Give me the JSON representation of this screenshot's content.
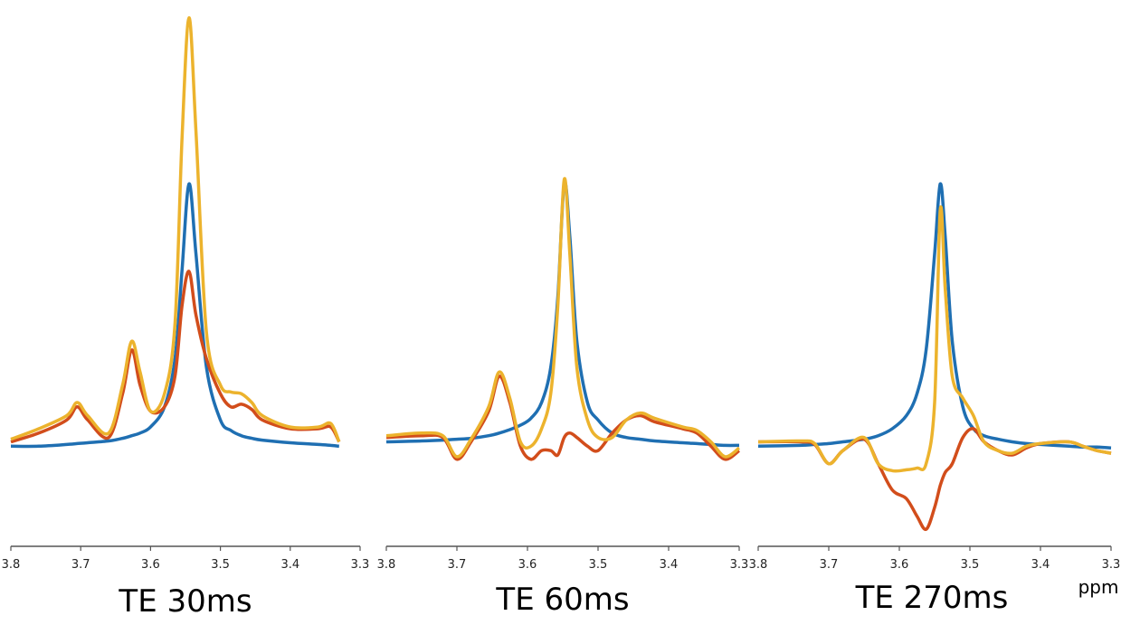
{
  "colors": {
    "series1": "#1f6fb2",
    "series2": "#d24d1b",
    "series3": "#ecb32d",
    "axis": "#555555"
  },
  "unit_label": "ppm",
  "chart_data": [
    {
      "type": "line",
      "title": "TE 30ms",
      "xlim": [
        3.8,
        3.3
      ],
      "ylim": [
        -1.0,
        5.0
      ],
      "xticks": [
        "3.8",
        "3.7",
        "3.6",
        "3.5",
        "3.4",
        "3.3"
      ],
      "x": [
        3.8,
        3.76,
        3.72,
        3.705,
        3.69,
        3.66,
        3.64,
        3.627,
        3.615,
        3.6,
        3.58,
        3.565,
        3.555,
        3.545,
        3.535,
        3.52,
        3.5,
        3.485,
        3.47,
        3.455,
        3.44,
        3.4,
        3.36,
        3.342,
        3.33
      ],
      "series": [
        {
          "values": [
            0.0,
            0.0,
            0.02,
            0.03,
            0.04,
            0.06,
            0.09,
            0.12,
            0.15,
            0.22,
            0.45,
            1.0,
            2.0,
            3.0,
            2.2,
            0.9,
            0.3,
            0.18,
            0.12,
            0.09,
            0.07,
            0.04,
            0.02,
            0.01,
            0.0
          ]
        },
        {
          "values": [
            0.05,
            0.15,
            0.3,
            0.45,
            0.3,
            0.1,
            0.6,
            1.1,
            0.7,
            0.4,
            0.45,
            0.8,
            1.6,
            2.0,
            1.5,
            1.0,
            0.6,
            0.45,
            0.48,
            0.42,
            0.3,
            0.2,
            0.2,
            0.22,
            0.05
          ]
        },
        {
          "values": [
            0.08,
            0.2,
            0.35,
            0.5,
            0.35,
            0.15,
            0.7,
            1.2,
            0.85,
            0.4,
            0.6,
            1.4,
            3.5,
            4.9,
            3.6,
            1.3,
            0.7,
            0.62,
            0.6,
            0.5,
            0.35,
            0.22,
            0.22,
            0.26,
            0.05
          ]
        }
      ]
    },
    {
      "type": "line",
      "title": "TE 60ms",
      "xlim": [
        3.8,
        3.3
      ],
      "ylim": [
        -1.0,
        5.0
      ],
      "xticks": [
        "3.8",
        "3.7",
        "3.6",
        "3.5",
        "3.4",
        "3.3"
      ],
      "x": [
        3.8,
        3.75,
        3.72,
        3.7,
        3.68,
        3.655,
        3.64,
        3.625,
        3.61,
        3.595,
        3.58,
        3.567,
        3.557,
        3.548,
        3.54,
        3.53,
        3.515,
        3.5,
        3.48,
        3.46,
        3.44,
        3.42,
        3.38,
        3.36,
        3.34,
        3.32,
        3.3
      ],
      "series": [
        {
          "values": [
            0.05,
            0.06,
            0.07,
            0.08,
            0.09,
            0.12,
            0.15,
            0.19,
            0.24,
            0.32,
            0.5,
            0.9,
            1.7,
            3.0,
            2.4,
            1.2,
            0.5,
            0.3,
            0.15,
            0.1,
            0.08,
            0.06,
            0.04,
            0.03,
            0.02,
            0.01,
            0.01
          ]
        },
        {
          "values": [
            0.1,
            0.12,
            0.1,
            -0.15,
            0.05,
            0.4,
            0.8,
            0.5,
            0.0,
            -0.15,
            -0.05,
            -0.05,
            -0.1,
            0.1,
            0.15,
            0.1,
            0.0,
            -0.05,
            0.15,
            0.3,
            0.35,
            0.28,
            0.2,
            0.15,
            0.0,
            -0.15,
            -0.05
          ]
        },
        {
          "values": [
            0.12,
            0.15,
            0.12,
            -0.12,
            0.08,
            0.45,
            0.85,
            0.55,
            0.05,
            0.0,
            0.2,
            0.6,
            1.6,
            3.05,
            2.2,
            0.9,
            0.3,
            0.1,
            0.1,
            0.3,
            0.38,
            0.32,
            0.22,
            0.18,
            0.05,
            -0.12,
            -0.02
          ]
        }
      ]
    },
    {
      "type": "line",
      "title": "TE 270ms",
      "xlim": [
        3.8,
        3.3
      ],
      "ylim": [
        -1.0,
        5.0
      ],
      "xticks": [
        "3.8",
        "3.7",
        "3.6",
        "3.5",
        "3.4",
        "3.3"
      ],
      "x": [
        3.8,
        3.74,
        3.72,
        3.7,
        3.68,
        3.65,
        3.63,
        3.61,
        3.59,
        3.575,
        3.562,
        3.55,
        3.542,
        3.535,
        3.525,
        3.51,
        3.495,
        3.48,
        3.46,
        3.44,
        3.42,
        3.4,
        3.36,
        3.34,
        3.32,
        3.3
      ],
      "series": [
        {
          "values": [
            0.0,
            0.01,
            0.02,
            0.03,
            0.05,
            0.08,
            0.12,
            0.2,
            0.35,
            0.6,
            1.1,
            2.2,
            3.0,
            2.4,
            1.2,
            0.45,
            0.2,
            0.12,
            0.08,
            0.05,
            0.03,
            0.02,
            0.0,
            -0.01,
            -0.01,
            -0.02
          ]
        },
        {
          "values": [
            0.05,
            0.05,
            0.02,
            -0.2,
            -0.05,
            0.08,
            -0.2,
            -0.5,
            -0.6,
            -0.8,
            -0.95,
            -0.7,
            -0.45,
            -0.3,
            -0.2,
            0.1,
            0.2,
            0.05,
            -0.05,
            -0.1,
            -0.02,
            0.03,
            0.05,
            0.0,
            -0.05,
            -0.08
          ]
        },
        {
          "values": [
            0.05,
            0.06,
            0.03,
            -0.2,
            -0.05,
            0.1,
            -0.2,
            -0.28,
            -0.27,
            -0.25,
            -0.2,
            0.5,
            2.7,
            1.8,
            0.8,
            0.55,
            0.35,
            0.05,
            -0.05,
            -0.08,
            0.0,
            0.03,
            0.05,
            0.0,
            -0.05,
            -0.08
          ]
        }
      ]
    }
  ]
}
